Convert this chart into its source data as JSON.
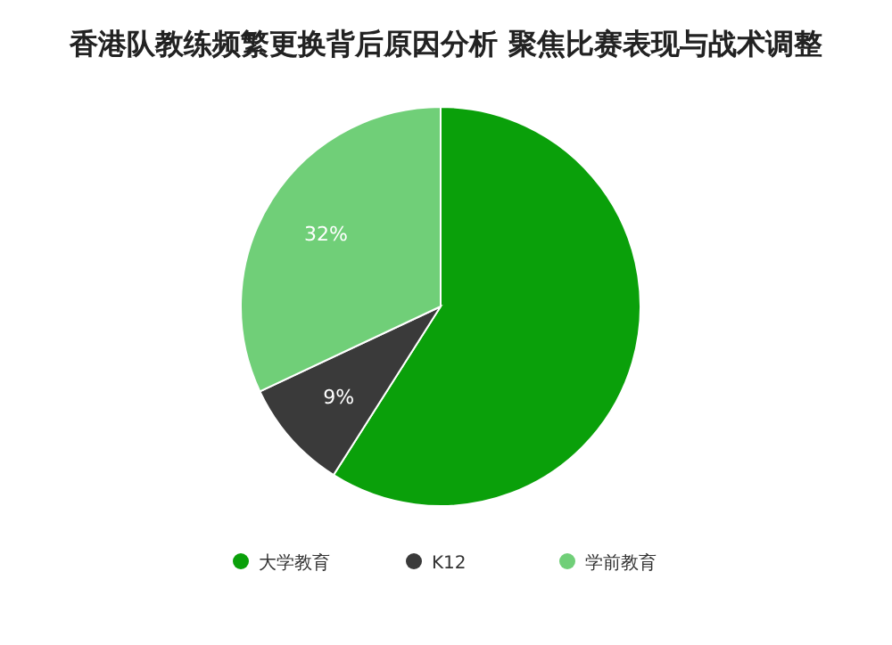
{
  "chart_data": {
    "type": "pie",
    "title": "香港队教练频繁更换背后原因分析 聚焦比赛表现与战术调整",
    "categories": [
      "大学教育",
      "K12",
      "学前教育"
    ],
    "values": [
      59,
      9,
      32
    ],
    "colors": [
      "#0aa00a",
      "#3a3a3a",
      "#70cf78"
    ],
    "value_labels": [
      null,
      "9%",
      "32%"
    ],
    "legend": "bottom"
  }
}
